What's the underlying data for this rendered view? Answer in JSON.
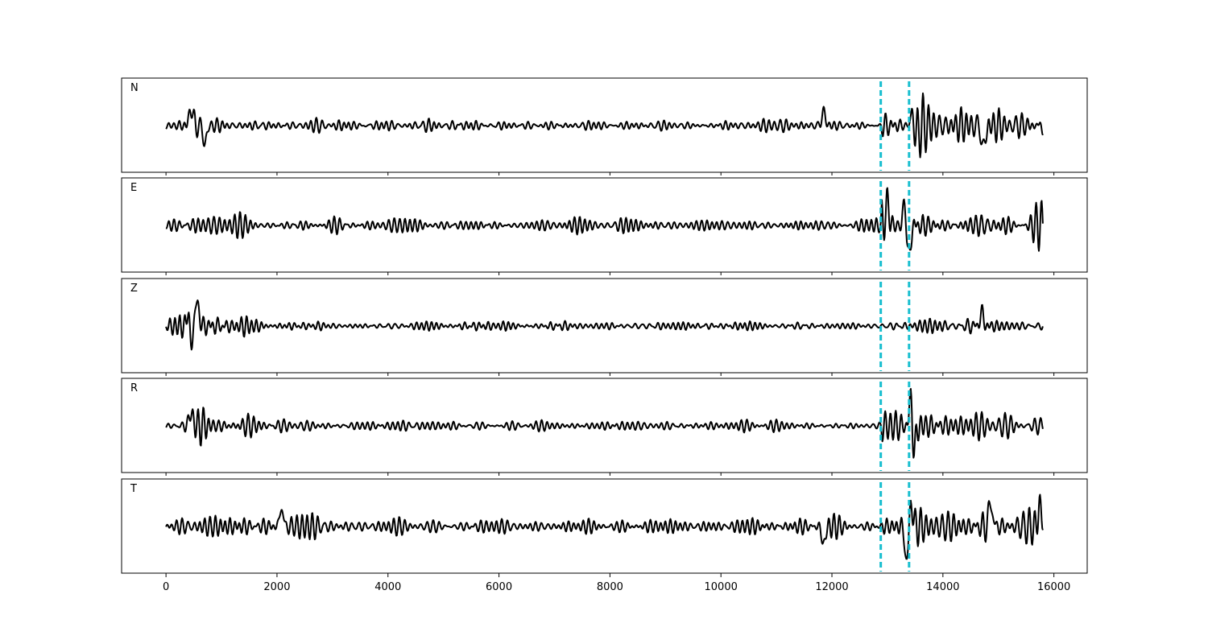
{
  "chart_data": {
    "type": "line",
    "xlim": [
      -800,
      16600
    ],
    "x_ticks": [
      0,
      2000,
      4000,
      6000,
      8000,
      10000,
      12000,
      14000,
      16000
    ],
    "x_tick_labels": [
      "0",
      "2000",
      "4000",
      "6000",
      "8000",
      "10000",
      "12000",
      "14000",
      "16000"
    ],
    "picks": [
      12880,
      13390
    ],
    "pick_color": "#17becf",
    "trace_color": "#000000",
    "x_start": 0,
    "x_end": 15800,
    "grid": false,
    "panels": [
      {
        "name": "N",
        "label": "N",
        "envelope": [
          [
            0,
            0.12
          ],
          [
            300,
            0.16
          ],
          [
            650,
            0.45
          ],
          [
            800,
            0.2
          ],
          [
            1000,
            0.2
          ],
          [
            2000,
            0.18
          ],
          [
            4000,
            0.17
          ],
          [
            4800,
            0.2
          ],
          [
            6000,
            0.14
          ],
          [
            9000,
            0.15
          ],
          [
            11800,
            0.14
          ],
          [
            12880,
            0.12
          ],
          [
            12900,
            0.45
          ],
          [
            13300,
            0.3
          ],
          [
            13450,
            0.85
          ],
          [
            13700,
            0.5
          ],
          [
            14000,
            0.45
          ],
          [
            14700,
            0.5
          ],
          [
            15800,
            0.4
          ]
        ],
        "spikes": [
          [
            450,
            0.45
          ],
          [
            700,
            -0.45
          ],
          [
            11850,
            0.35
          ],
          [
            13470,
            0.88
          ],
          [
            13490,
            -0.85
          ],
          [
            14730,
            -0.6
          ]
        ]
      },
      {
        "name": "E",
        "label": "E",
        "envelope": [
          [
            0,
            0.12
          ],
          [
            300,
            0.2
          ],
          [
            800,
            0.3
          ],
          [
            1500,
            0.2
          ],
          [
            3000,
            0.18
          ],
          [
            6000,
            0.15
          ],
          [
            8000,
            0.15
          ],
          [
            10000,
            0.15
          ],
          [
            12880,
            0.12
          ],
          [
            12900,
            0.5
          ],
          [
            13200,
            0.35
          ],
          [
            13350,
            0.75
          ],
          [
            13700,
            0.45
          ],
          [
            14000,
            0.35
          ],
          [
            15000,
            0.35
          ],
          [
            15800,
            0.3
          ]
        ],
        "spikes": [
          [
            13320,
            0.65
          ],
          [
            13380,
            -0.95
          ],
          [
            13000,
            0.55
          ]
        ]
      },
      {
        "name": "Z",
        "label": "Z",
        "envelope": [
          [
            0,
            0.05
          ],
          [
            400,
            0.5
          ],
          [
            700,
            0.3
          ],
          [
            1200,
            0.2
          ],
          [
            2000,
            0.14
          ],
          [
            4000,
            0.12
          ],
          [
            6000,
            0.1
          ],
          [
            9000,
            0.12
          ],
          [
            12880,
            0.1
          ],
          [
            13500,
            0.2
          ],
          [
            14000,
            0.18
          ],
          [
            14600,
            0.3
          ],
          [
            15000,
            0.2
          ],
          [
            15800,
            0.15
          ]
        ],
        "spikes": [
          [
            420,
            0.9
          ],
          [
            440,
            -1.0
          ],
          [
            560,
            0.65
          ],
          [
            14700,
            0.33
          ]
        ]
      },
      {
        "name": "R",
        "label": "R",
        "envelope": [
          [
            0,
            0.1
          ],
          [
            300,
            0.15
          ],
          [
            650,
            0.4
          ],
          [
            900,
            0.2
          ],
          [
            1700,
            0.18
          ],
          [
            4000,
            0.12
          ],
          [
            7000,
            0.1
          ],
          [
            10000,
            0.12
          ],
          [
            12880,
            0.1
          ],
          [
            12900,
            0.4
          ],
          [
            13300,
            0.35
          ],
          [
            13450,
            0.8
          ],
          [
            13700,
            0.45
          ],
          [
            14000,
            0.4
          ],
          [
            15000,
            0.35
          ],
          [
            15800,
            0.3
          ]
        ],
        "spikes": [
          [
            450,
            0.33
          ],
          [
            13430,
            0.78
          ],
          [
            13480,
            -0.75
          ]
        ]
      },
      {
        "name": "T",
        "label": "T",
        "envelope": [
          [
            0,
            0.15
          ],
          [
            400,
            0.25
          ],
          [
            2000,
            0.28
          ],
          [
            3300,
            0.3
          ],
          [
            6000,
            0.2
          ],
          [
            9000,
            0.18
          ],
          [
            11800,
            0.22
          ],
          [
            12880,
            0.15
          ],
          [
            12950,
            0.35
          ],
          [
            13300,
            0.55
          ],
          [
            13400,
            0.85
          ],
          [
            13700,
            0.55
          ],
          [
            14000,
            0.5
          ],
          [
            14900,
            0.55
          ],
          [
            15800,
            0.4
          ]
        ],
        "spikes": [
          [
            2080,
            0.45
          ],
          [
            11850,
            -0.45
          ],
          [
            13350,
            -0.95
          ],
          [
            13420,
            0.65
          ],
          [
            14860,
            0.6
          ],
          [
            15750,
            0.5
          ]
        ]
      }
    ]
  }
}
